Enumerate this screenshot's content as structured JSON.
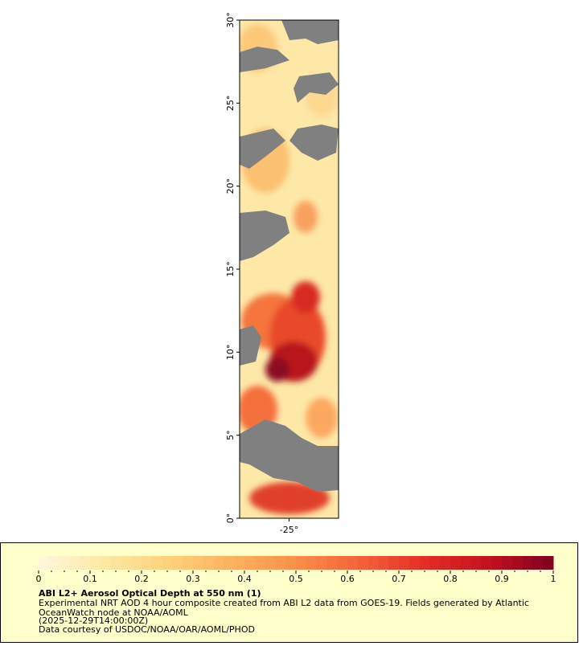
{
  "map": {
    "xlim": [
      -28,
      -22
    ],
    "ylim": [
      0,
      30
    ],
    "xticks": [
      {
        "value": -25,
        "label": "-25°"
      }
    ],
    "yticks": [
      {
        "value": 0,
        "label": "0°"
      },
      {
        "value": 5,
        "label": "5°"
      },
      {
        "value": 10,
        "label": "10°"
      },
      {
        "value": 15,
        "label": "15°"
      },
      {
        "value": 20,
        "label": "20°"
      },
      {
        "value": 25,
        "label": "25°"
      },
      {
        "value": 30,
        "label": "30°"
      }
    ]
  },
  "legend": {
    "range": [
      0,
      1
    ],
    "ticks": [
      0,
      0.1,
      0.2,
      0.3,
      0.4,
      0.5,
      0.6,
      0.7,
      0.8,
      0.9,
      1
    ],
    "minor_per_interval": 4,
    "colors": [
      "#fef8dc",
      "#fde9a6",
      "#fdd27c",
      "#fcb260",
      "#fb8f4a",
      "#f5613a",
      "#e42e25",
      "#c3111f",
      "#7f0020"
    ],
    "title": "ABI L2+ Aerosol Optical Depth at 550 nm (1)",
    "lines": [
      "Experimental NRT AOD 4 hour composite created from ABI L2 data from GOES-19. Fields generated by Atlantic",
      "OceanWatch node at NOAA/AOML",
      "(2025-12-29T14:00:00Z)",
      "Data courtesy of USDOC/NOAA/OAR/AOML/PHOD"
    ]
  }
}
